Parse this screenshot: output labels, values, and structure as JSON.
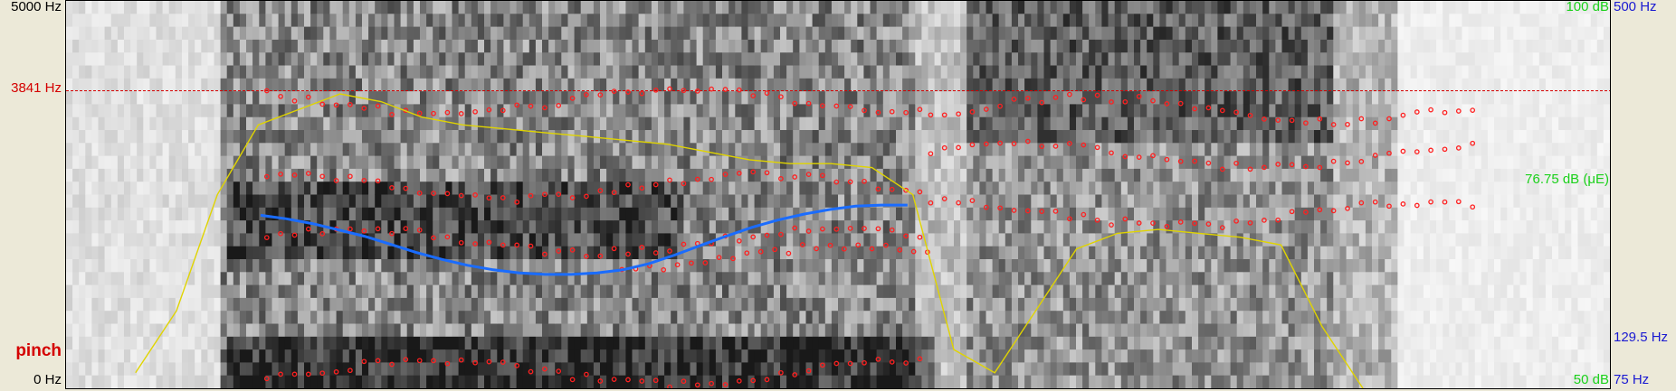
{
  "axes": {
    "freq_top": "5000 Hz",
    "freq_bottom": "0 Hz",
    "cursor_freq": "3841 Hz",
    "intensity_top": "100 dB",
    "intensity_mid": "76.75 dB (μE)",
    "intensity_bottom": "50 dB",
    "pitch_top": "500 Hz",
    "pitch_mid": "129.5 Hz",
    "pitch_bottom": "75 Hz"
  },
  "word_label": "pinch",
  "colors": {
    "window_bg": "#ece9d8",
    "formant": "#ff2020",
    "intensity": "#e0d400",
    "pitch": "#1a6cff",
    "cursor": "#d40000",
    "green_label": "#1ad11a",
    "blue_label": "#1a1ad1"
  },
  "chart_data": {
    "type": "line",
    "pitch_track_hz": [
      175,
      172,
      168,
      163,
      158,
      152,
      146,
      141,
      137,
      134,
      132,
      131,
      131,
      132,
      134,
      138,
      144,
      151,
      158,
      165,
      171,
      176,
      180,
      183,
      184,
      184
    ],
    "intensity_track_db": [
      52,
      60,
      75,
      84,
      86,
      88,
      87,
      85,
      84,
      83.5,
      83,
      82.5,
      82,
      81.5,
      80.5,
      79.5,
      79,
      79,
      78.5,
      75,
      55,
      52,
      60,
      68,
      70,
      70.5,
      70,
      69.5,
      68.5,
      58,
      50
    ]
  }
}
